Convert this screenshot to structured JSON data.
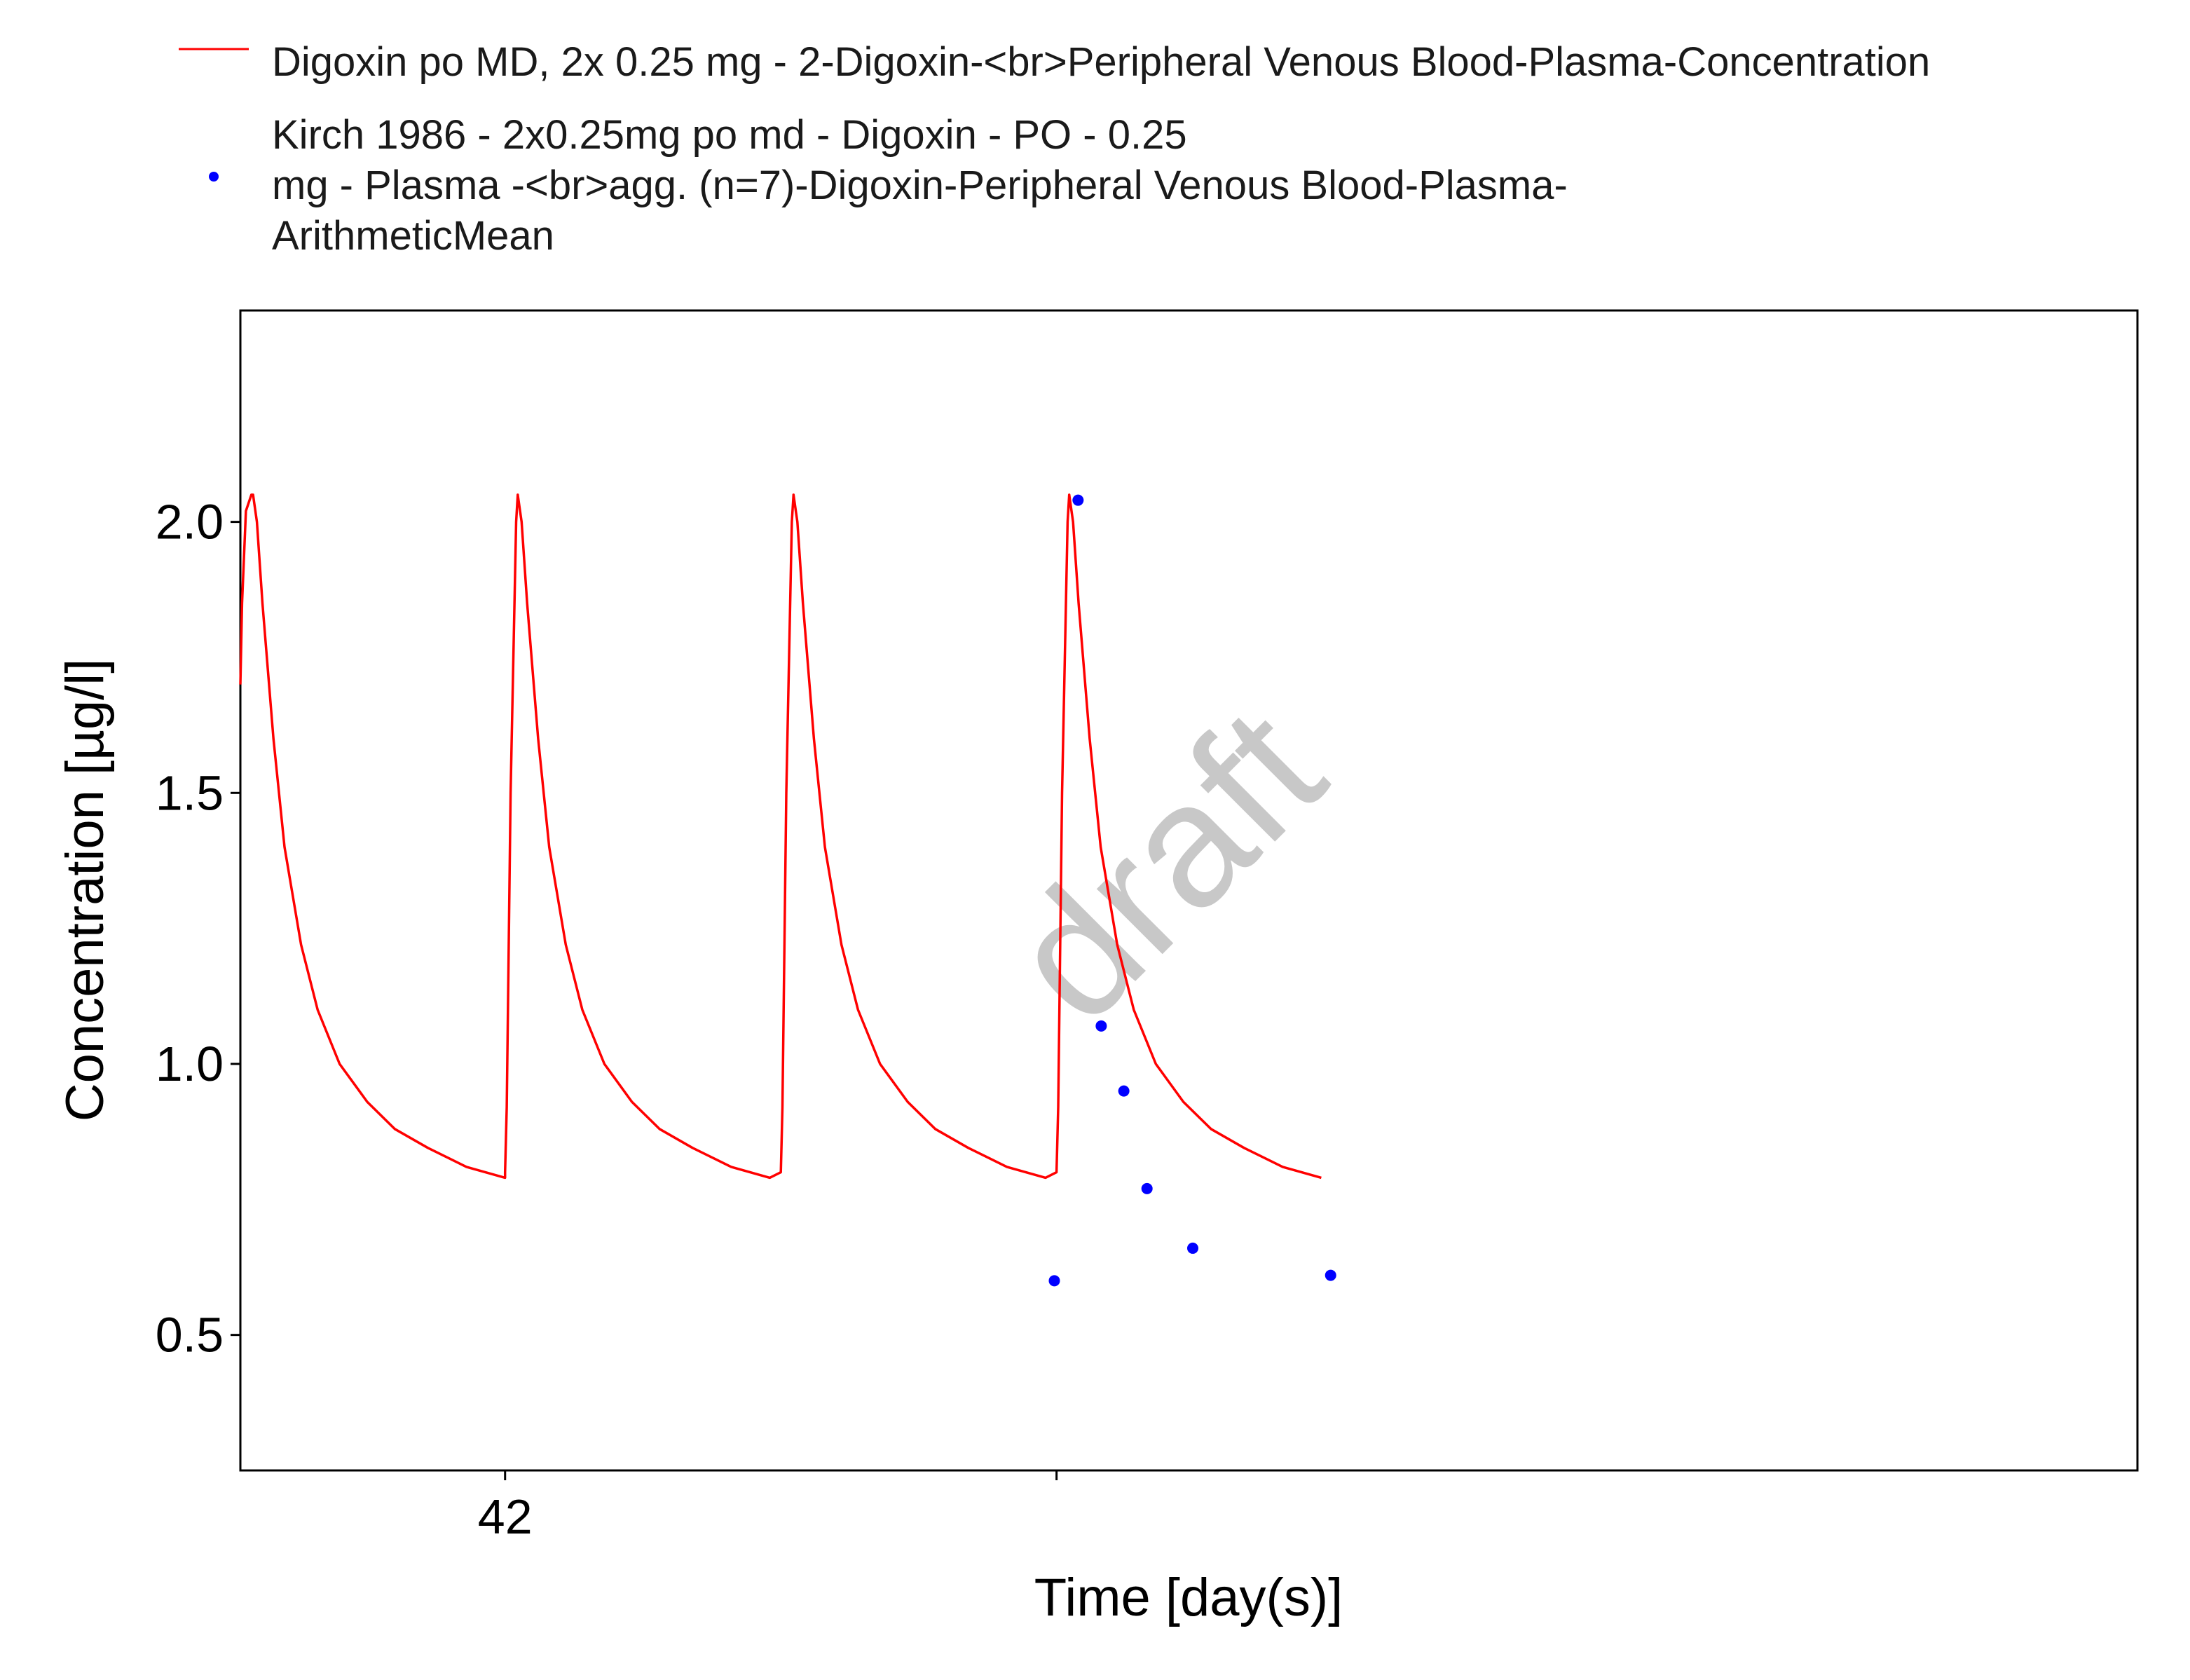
{
  "chart_data": {
    "type": "line",
    "xlabel": "Time [day(s)]",
    "ylabel": "Concentration [µg/l]",
    "watermark": "draft",
    "x_unit": "day",
    "xlim": [
      41.52,
      44.96
    ],
    "ylim": [
      0.25,
      2.39
    ],
    "x_ticks": [
      42
    ],
    "x_tick_labels": [
      "42"
    ],
    "x_minor_ticks": [
      41,
      42,
      43
    ],
    "y_ticks": [
      0.5,
      1.0,
      1.5,
      2.0
    ],
    "y_tick_labels": [
      "0.5",
      "1.0",
      "1.5",
      "2.0"
    ],
    "grid": false,
    "legend_position": "top",
    "series": [
      {
        "name": "Digoxin po MD, 2x 0.25 mg - 2-Digoxin-<br>Peripheral Venous Blood-Plasma-Concentration",
        "kind": "line",
        "color": "#ff0000",
        "x": [
          41.52,
          41.523,
          41.53,
          41.54,
          41.543,
          41.55,
          41.56,
          41.58,
          41.6,
          41.63,
          41.66,
          41.7,
          41.75,
          41.8,
          41.86,
          41.93,
          42.0,
          42.0,
          42.003,
          42.01,
          42.02,
          42.023,
          42.03,
          42.04,
          42.06,
          42.08,
          42.11,
          42.14,
          42.18,
          42.23,
          42.28,
          42.34,
          42.41,
          42.48,
          42.5,
          42.503,
          42.51,
          42.52,
          42.523,
          42.53,
          42.54,
          42.56,
          42.58,
          42.61,
          42.64,
          42.68,
          42.73,
          42.78,
          42.84,
          42.91,
          42.98,
          43.0,
          43.003,
          43.01,
          43.02,
          43.023,
          43.03,
          43.04,
          43.06,
          43.08,
          43.11,
          43.14,
          43.18,
          43.23,
          43.28,
          43.34,
          43.41,
          43.48
        ],
        "values": [
          1.7,
          1.85,
          2.02,
          2.05,
          2.05,
          2.0,
          1.85,
          1.6,
          1.4,
          1.22,
          1.1,
          1.0,
          0.93,
          0.88,
          0.845,
          0.81,
          0.79,
          0.8,
          0.92,
          1.5,
          2.0,
          2.05,
          2.0,
          1.85,
          1.6,
          1.4,
          1.22,
          1.1,
          1.0,
          0.93,
          0.88,
          0.845,
          0.81,
          0.79,
          0.8,
          0.92,
          1.5,
          2.0,
          2.05,
          2.0,
          1.85,
          1.6,
          1.4,
          1.22,
          1.1,
          1.0,
          0.93,
          0.88,
          0.845,
          0.81,
          0.79,
          0.8,
          0.92,
          1.5,
          2.0,
          2.05,
          2.0,
          1.85,
          1.6,
          1.4,
          1.22,
          1.1,
          1.0,
          0.93,
          0.88,
          0.845,
          0.81,
          0.79
        ]
      },
      {
        "name": "Kirch 1986 - 2x0.25mg po md - Digoxin - PO - 0.25 mg - Plasma -<br>agg. (n=7)-Digoxin-Peripheral Venous Blood-Plasma-ArithmeticMean",
        "kind": "points",
        "color": "#0000ff",
        "x": [
          42.996,
          43.039,
          43.081,
          43.122,
          43.164,
          43.247,
          43.497
        ],
        "values": [
          0.6,
          2.04,
          1.07,
          0.95,
          0.77,
          0.66,
          0.61
        ]
      }
    ]
  },
  "legend": {
    "line_label_lines": [
      "Digoxin po MD, 2x 0.25 mg - 2-Digoxin-<br>Peripheral Venous Blood-Plasma-Concentration"
    ],
    "points_label_lines": [
      "Kirch 1986 - 2x0.25mg po md - Digoxin - PO - 0.25",
      "mg - Plasma -<br>agg. (n=7)-Digoxin-Peripheral Venous Blood-Plasma-",
      "ArithmeticMean"
    ]
  }
}
